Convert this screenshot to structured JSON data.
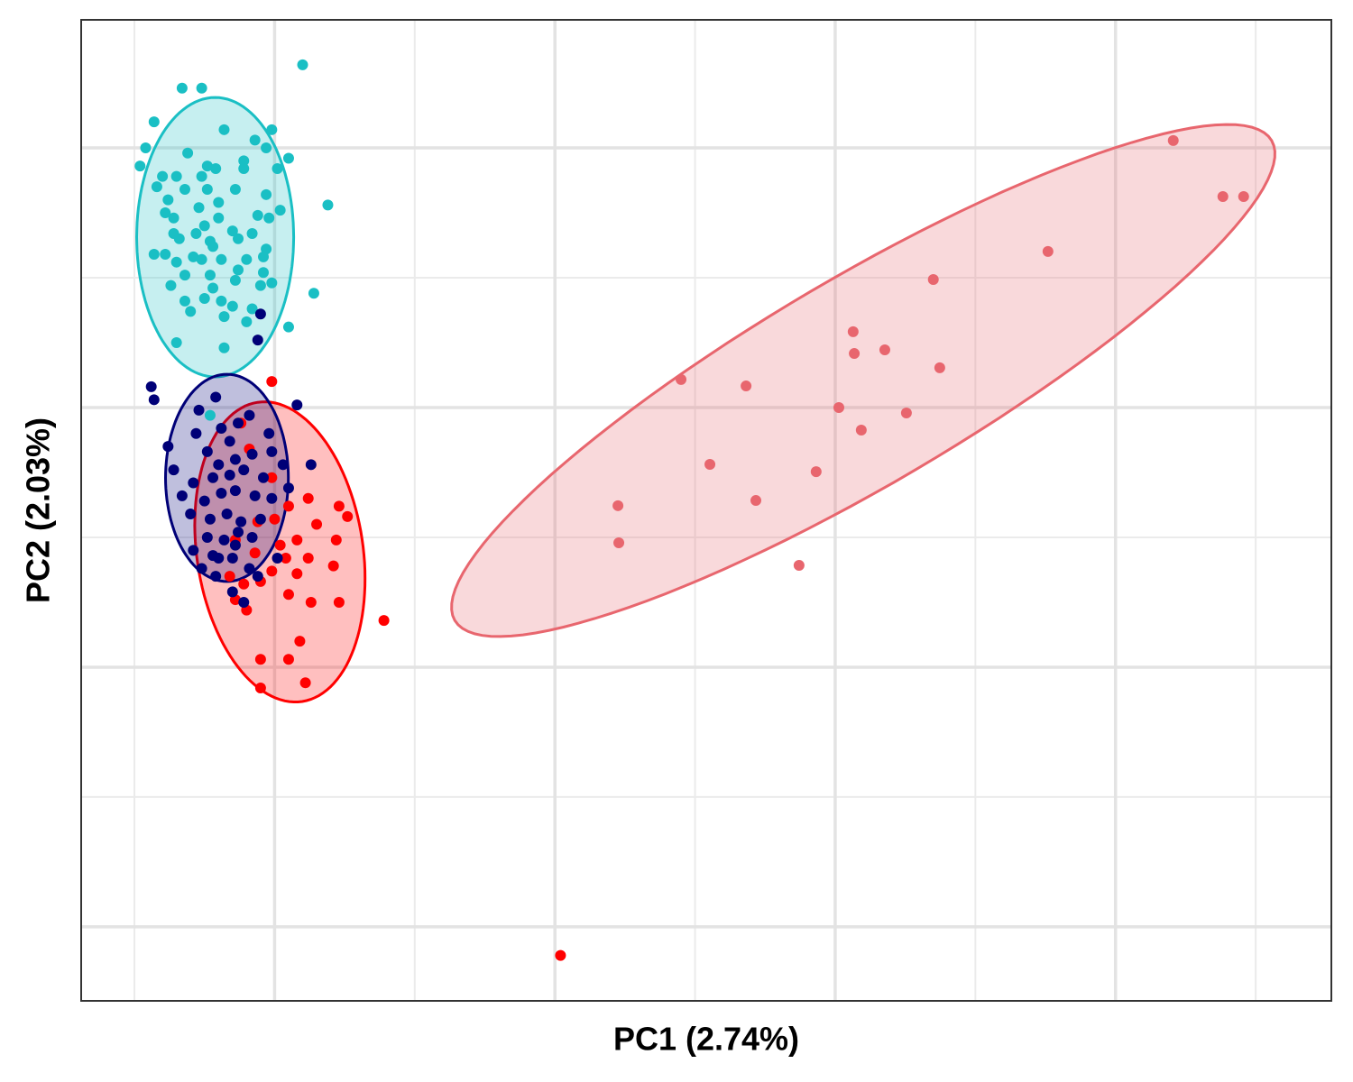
{
  "chart_data": {
    "type": "scatter",
    "xlabel": "PC1 (2.74%)",
    "ylabel": "PC2 (2.03%)",
    "xlim": [
      -0.69,
      3.77
    ],
    "ylim": [
      -2.285,
      1.493
    ],
    "xticks": [
      0,
      1,
      2,
      3
    ],
    "xminor": [
      -0.5,
      0.5,
      1.5,
      2.5,
      3.5
    ],
    "yticks": [
      1,
      0,
      -1,
      -2
    ],
    "yminor": [
      0.5,
      -0.5,
      -1.5
    ],
    "grid": true,
    "series": [
      {
        "color": "#e8666e",
        "ellipse": {
          "center": [
            2.1,
            0.104
          ],
          "axis1": [
            1.457,
            0.924
          ],
          "axis2": [
            0.186,
            -0.344
          ]
        },
        "x": [
          3.206,
          3.383,
          3.457,
          2.759,
          2.35,
          2.064,
          2.068,
          2.177,
          2.373,
          1.45,
          1.682,
          2.013,
          2.254,
          2.093,
          1.553,
          1.932,
          1.717,
          1.225,
          1.228,
          1.871
        ],
        "y": [
          1.028,
          0.8125,
          0.8125,
          0.601,
          0.493,
          0.292,
          0.208,
          0.222,
          0.153,
          0.108,
          0.083,
          0,
          -0.021,
          -0.087,
          -0.219,
          -0.247,
          -0.358,
          -0.378,
          -0.521,
          -0.608
        ]
      },
      {
        "color": "#1abfc4",
        "ellipse": {
          "center": [
            -0.212,
            0.656
          ],
          "axis1": [
            0.28,
            0
          ],
          "axis2": [
            0,
            0.538
          ]
        },
        "x": [
          0.1,
          -0.33,
          -0.26,
          -0.43,
          -0.01,
          -0.18,
          -0.07,
          -0.46,
          -0.31,
          -0.03,
          0.05,
          -0.48,
          -0.24,
          -0.21,
          -0.11,
          -0.11,
          -0.35,
          -0.26,
          0.01,
          -0.42,
          -0.32,
          -0.24,
          -0.14,
          -0.03,
          0.19,
          -0.27,
          -0.39,
          -0.2,
          -0.06,
          -0.02,
          -0.36,
          -0.25,
          -0.15,
          -0.36,
          -0.23,
          -0.22,
          -0.03,
          -0.43,
          -0.39,
          -0.29,
          -0.35,
          -0.26,
          -0.19,
          -0.1,
          -0.04,
          -0.32,
          -0.23,
          -0.14,
          -0.05,
          -0.01,
          0.14,
          -0.32,
          -0.25,
          -0.19,
          -0.15,
          -0.08,
          -0.3,
          -0.18,
          0.05,
          -0.1,
          -0.35,
          -0.18,
          -0.23,
          -0.4,
          -0.38,
          -0.2,
          -0.28,
          -0.13,
          -0.04,
          -0.22,
          -0.37,
          -0.13,
          -0.34,
          -0.08,
          0.02
        ],
        "y": [
          1.32,
          1.23,
          1.23,
          1.1,
          1.07,
          1.07,
          1.03,
          1.0,
          0.98,
          1.0,
          0.96,
          0.93,
          0.93,
          0.92,
          0.95,
          0.92,
          0.89,
          0.89,
          0.92,
          0.85,
          0.84,
          0.84,
          0.84,
          0.82,
          0.78,
          0.77,
          0.75,
          0.73,
          0.74,
          0.73,
          0.73,
          0.7,
          0.68,
          0.67,
          0.64,
          0.62,
          0.61,
          0.59,
          0.59,
          0.58,
          0.56,
          0.57,
          0.57,
          0.57,
          0.58,
          0.51,
          0.51,
          0.49,
          0.47,
          0.48,
          0.44,
          0.41,
          0.42,
          0.41,
          0.39,
          0.38,
          0.37,
          0.35,
          0.31,
          0.33,
          0.25,
          0.23,
          -0.03,
          0.89,
          0.8,
          0.79,
          0.67,
          0.65,
          0.52,
          0.46,
          0.47,
          0.53,
          0.65,
          0.67,
          0.76
        ]
      },
      {
        "color": "#ff0000",
        "ellipse": {
          "center": [
            0.019,
            -0.556
          ],
          "axis1": [
            -0.08,
            0.576
          ],
          "axis2": [
            0.293,
            0.049
          ]
        },
        "x": [
          -0.01,
          -0.12,
          -0.09,
          -0.01,
          0.12,
          0.23,
          0.26,
          0.15,
          0.22,
          0.08,
          0.04,
          0.12,
          0.21,
          -0.01,
          0.08,
          -0.05,
          -0.11,
          0.05,
          0.23,
          -0.14,
          -0.1,
          0.13,
          0.39,
          0.09,
          -0.05,
          0.05,
          -0.05,
          0.11,
          1.02,
          -0.14,
          -0.07,
          0.0,
          0.05,
          -0.16,
          0.02,
          -0.06
        ],
        "y": [
          0.1,
          -0.06,
          -0.16,
          -0.27,
          -0.35,
          -0.38,
          -0.42,
          -0.45,
          -0.51,
          -0.51,
          -0.58,
          -0.58,
          -0.61,
          -0.63,
          -0.64,
          -0.67,
          -0.68,
          -0.72,
          -0.75,
          -0.74,
          -0.78,
          -0.75,
          -0.82,
          -0.9,
          -0.97,
          -0.97,
          -1.08,
          -1.06,
          -2.11,
          -0.51,
          -0.56,
          -0.43,
          -0.38,
          -0.65,
          -0.53,
          -0.44
        ]
      },
      {
        "color": "#000077",
        "ellipse": {
          "center": [
            -0.17,
            -0.271
          ],
          "axis1": [
            0.219,
            0
          ],
          "axis2": [
            0,
            0.399
          ]
        },
        "x": [
          -0.05,
          -0.06,
          -0.44,
          -0.43,
          0.08,
          -0.21,
          -0.27,
          -0.38,
          -0.28,
          -0.19,
          -0.13,
          -0.09,
          -0.02,
          -0.36,
          -0.24,
          -0.16,
          -0.2,
          -0.14,
          -0.08,
          -0.01,
          -0.29,
          -0.22,
          -0.16,
          -0.11,
          -0.04,
          0.03,
          0.13,
          -0.25,
          -0.19,
          -0.14,
          -0.07,
          -0.01,
          0.05,
          -0.3,
          -0.23,
          -0.17,
          -0.12,
          -0.05,
          -0.24,
          -0.18,
          -0.14,
          -0.08,
          -0.29,
          -0.22,
          -0.15,
          -0.09,
          -0.26,
          -0.21,
          -0.15,
          -0.11,
          -0.06,
          0.01,
          -0.33,
          -0.2,
          -0.13
        ],
        "y": [
          0.36,
          0.26,
          0.08,
          0.03,
          0.01,
          0.04,
          -0.01,
          -0.15,
          -0.1,
          -0.08,
          -0.06,
          -0.03,
          -0.1,
          -0.24,
          -0.17,
          -0.13,
          -0.22,
          -0.2,
          -0.18,
          -0.17,
          -0.29,
          -0.27,
          -0.26,
          -0.24,
          -0.27,
          -0.22,
          -0.22,
          -0.36,
          -0.33,
          -0.32,
          -0.34,
          -0.35,
          -0.31,
          -0.41,
          -0.43,
          -0.41,
          -0.44,
          -0.43,
          -0.5,
          -0.51,
          -0.53,
          -0.5,
          -0.55,
          -0.57,
          -0.58,
          -0.62,
          -0.62,
          -0.65,
          -0.71,
          -0.75,
          -0.65,
          -0.58,
          -0.34,
          -0.58,
          -0.48
        ]
      }
    ]
  }
}
